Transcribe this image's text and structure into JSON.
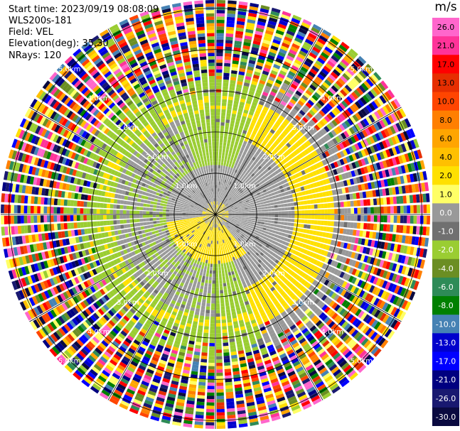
{
  "header": {
    "start_time": "Start time: 2023/09/19 08:08:09",
    "site": "WLS200s-181",
    "field": "Field: VEL",
    "elevation": "Elevation(deg): 35.30",
    "nrays": "NRays: 120"
  },
  "colorbar": {
    "title": "m/s",
    "ticks": [
      "26.0",
      "21.0",
      "17.0",
      "13.0",
      "10.0",
      "8.0",
      "6.0",
      "4.0",
      "2.0",
      "1.0",
      "0.0",
      "-1.0",
      "-2.0",
      "-4.0",
      "-6.0",
      "-8.0",
      "-10.0",
      "-13.0",
      "-17.0",
      "-21.0",
      "-26.0",
      "-30.0"
    ],
    "colors": [
      "#ff66cc",
      "#ff3399",
      "#ff0000",
      "#e62e00",
      "#ff4500",
      "#ff7f00",
      "#ffa500",
      "#ffc000",
      "#ffe000",
      "#ffff66",
      "#999999",
      "#707070",
      "#9acd32",
      "#6b8e23",
      "#2e8b57",
      "#008000",
      "#4682b4",
      "#0000cd",
      "#0000ff",
      "#000080",
      "#191970",
      "#0a0a40"
    ]
  },
  "chart_data": {
    "type": "heatmap",
    "projection": "polar-ppi",
    "n_rays": 120,
    "range_rings_km": [
      1.0,
      2.0,
      3.0,
      4.0,
      5.0
    ],
    "ring_labels": [
      "1.0km",
      "2.0km",
      "3.0km",
      "4.0km",
      "5.0km"
    ],
    "max_range_km": 5.2,
    "spokes_deg": [
      0,
      30,
      60,
      90,
      120,
      150
    ],
    "value_range": [
      -30,
      26
    ],
    "units": "m/s"
  }
}
